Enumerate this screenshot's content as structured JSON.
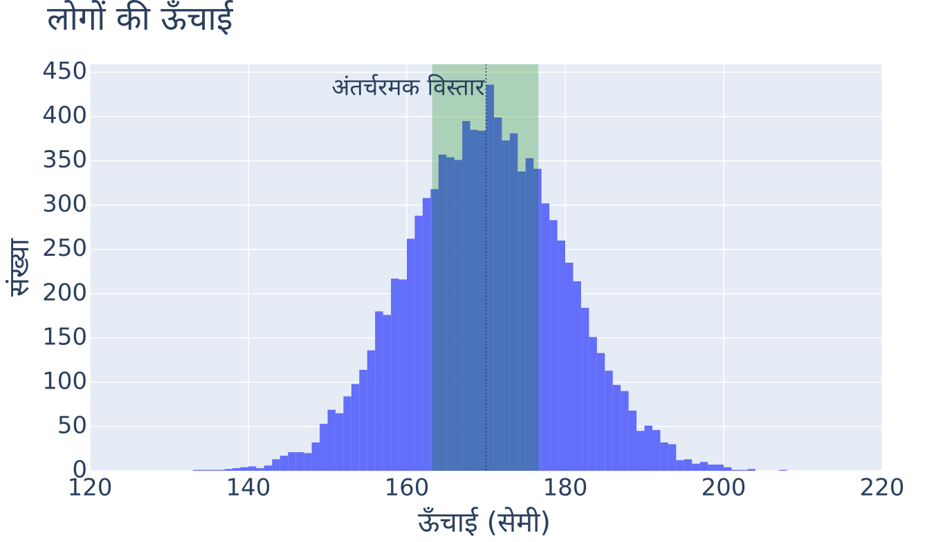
{
  "chart_data": {
    "type": "histogram",
    "title": "लोगों की ऊँचाई",
    "xlabel": "ऊँचाई (सेमी)",
    "ylabel": "संख्या",
    "bins": [
      133,
      134,
      135,
      136,
      137,
      138,
      139,
      140,
      141,
      142,
      143,
      144,
      145,
      146,
      147,
      148,
      149,
      150,
      151,
      152,
      153,
      154,
      155,
      156,
      157,
      158,
      159,
      160,
      161,
      162,
      163,
      164,
      165,
      166,
      167,
      168,
      169,
      170,
      171,
      172,
      173,
      174,
      175,
      176,
      177,
      178,
      179,
      180,
      181,
      182,
      183,
      184,
      185,
      186,
      187,
      188,
      189,
      190,
      191,
      192,
      193,
      194,
      195,
      196,
      197,
      198,
      199,
      200,
      201,
      202,
      203,
      204,
      205,
      206,
      207,
      208
    ],
    "values": [
      1,
      1,
      1,
      1,
      2,
      3,
      4,
      5,
      3,
      6,
      13,
      17,
      21,
      21,
      20,
      32,
      53,
      69,
      65,
      84,
      98,
      114,
      136,
      180,
      176,
      217,
      216,
      262,
      288,
      308,
      318,
      357,
      354,
      351,
      395,
      385,
      384,
      436,
      399,
      373,
      381,
      338,
      353,
      341,
      302,
      283,
      260,
      235,
      214,
      184,
      151,
      133,
      113,
      97,
      90,
      68,
      45,
      51,
      46,
      32,
      30,
      12,
      13,
      8,
      10,
      7,
      7,
      4,
      1,
      1,
      2,
      0,
      0,
      0,
      1
    ],
    "color": "#636efa",
    "xlim": [
      120,
      220
    ],
    "xticks": [
      120,
      140,
      160,
      180,
      200,
      220
    ],
    "ylim": [
      0,
      459
    ],
    "yticks": [
      0,
      50,
      100,
      150,
      200,
      250,
      300,
      350,
      400,
      450
    ],
    "grid": true,
    "band": {
      "x0": 163.2,
      "x1": 176.6,
      "color": "#008000"
    },
    "vline": {
      "x": 170,
      "annotation": "अंतर्चरमक विस्तार"
    }
  }
}
